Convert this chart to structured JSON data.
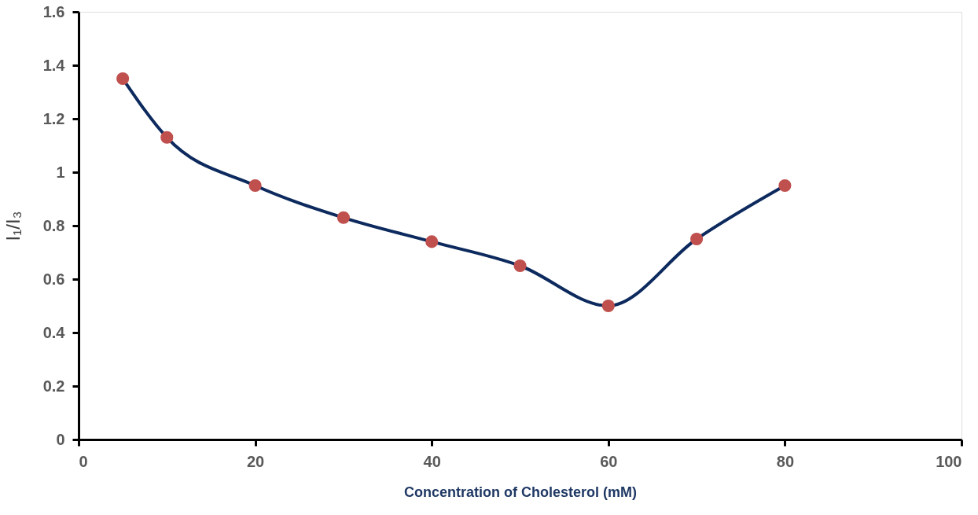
{
  "chart_data": {
    "type": "line",
    "xlabel": "Concentration of Cholesterol (mM)",
    "ylabel": "I₁/I₃",
    "x": [
      5,
      10,
      20,
      30,
      40,
      50,
      60,
      70,
      80
    ],
    "series": [
      {
        "color": "#0d2a5e",
        "colors": [
          "#c0504d",
          "#c0504d",
          "#c0504d",
          "#c0504d",
          "#c0504d",
          "#c0504d",
          "#c0504d",
          "#c0504d",
          "#c0504d"
        ],
        "values": [
          1.35,
          1.13,
          0.95,
          0.83,
          0.74,
          0.65,
          0.5,
          0.75,
          0.95
        ]
      }
    ],
    "marker": "circle",
    "line_style": "solid",
    "xlim": [
      0,
      100
    ],
    "xticks": [
      0,
      20,
      40,
      60,
      80,
      100
    ],
    "ylim": [
      0,
      1.6
    ],
    "yticks": [
      0,
      0.2,
      0.4,
      0.6,
      0.8,
      1,
      1.2,
      1.4,
      1.6
    ],
    "grid": false
  }
}
